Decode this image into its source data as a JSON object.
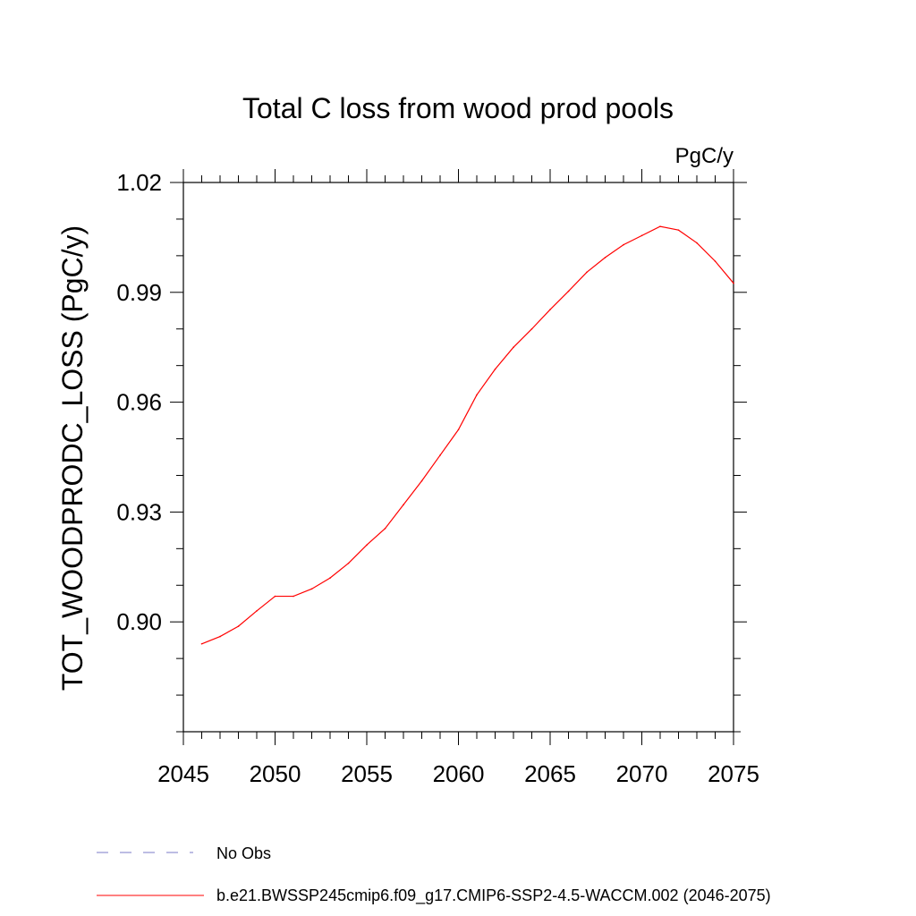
{
  "chart_data": {
    "type": "line",
    "title": "Total C loss from wood prod pools",
    "units_label": "PgC/y",
    "xlabel": "",
    "ylabel": "TOT_WOODPRODC_LOSS  (PgC/y)",
    "xlim": [
      2045,
      2075
    ],
    "ylim": [
      0.87,
      1.02
    ],
    "x_ticks": [
      2045,
      2050,
      2055,
      2060,
      2065,
      2070,
      2075
    ],
    "x_tick_labels": [
      "2045",
      "2050",
      "2055",
      "2060",
      "2065",
      "2070",
      "2075"
    ],
    "y_ticks": [
      0.9,
      0.93,
      0.96,
      0.99,
      1.02
    ],
    "y_tick_labels": [
      "0.90",
      "0.93",
      "0.96",
      "0.99",
      "1.02"
    ],
    "grid": false,
    "series": [
      {
        "name": "b.e21.BWSSP245cmip6.f09_g17.CMIP6-SSP2-4.5-WACCM.002 (2046-2075)",
        "color": "#ff0000",
        "x": [
          2046,
          2047,
          2048,
          2049,
          2050,
          2051,
          2052,
          2053,
          2054,
          2055,
          2056,
          2057,
          2058,
          2059,
          2060,
          2061,
          2062,
          2063,
          2064,
          2065,
          2066,
          2067,
          2068,
          2069,
          2070,
          2071,
          2072,
          2073,
          2074,
          2075
        ],
        "values": [
          0.894,
          0.896,
          0.8988,
          0.903,
          0.907,
          0.907,
          0.909,
          0.912,
          0.916,
          0.921,
          0.9255,
          0.932,
          0.9385,
          0.9455,
          0.9525,
          0.962,
          0.969,
          0.975,
          0.98,
          0.9853,
          0.9903,
          0.9955,
          0.9995,
          1.003,
          1.0055,
          1.008,
          1.007,
          1.0035,
          0.9985,
          0.9925
        ]
      }
    ],
    "legend": [
      {
        "label": "No Obs",
        "color": "#7b7bc8",
        "style": "dashed"
      },
      {
        "label": "b.e21.BWSSP245cmip6.f09_g17.CMIP6-SSP2-4.5-WACCM.002 (2046-2075)",
        "color": "#ff0000",
        "style": "solid"
      }
    ],
    "legend_position": "bottom-left"
  }
}
